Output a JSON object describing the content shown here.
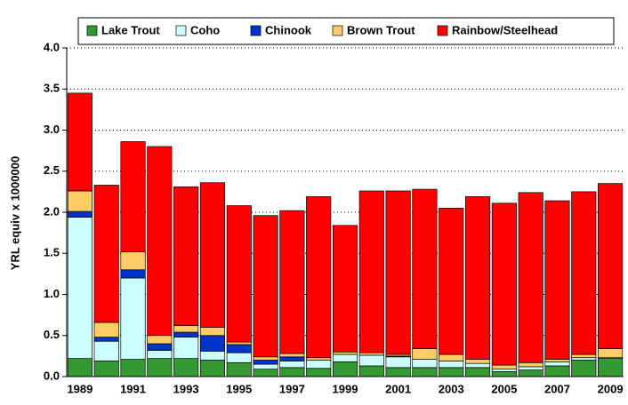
{
  "chart_data": {
    "type": "stacked-bar",
    "ylabel": "YRL equiv  x 1000000",
    "categories": [
      "1989",
      null,
      "1991",
      null,
      "1993",
      null,
      "1995",
      null,
      "1997",
      null,
      "1999",
      null,
      "2001",
      null,
      "2003",
      null,
      "2005",
      null,
      "2007",
      null,
      "2009"
    ],
    "series": [
      {
        "name": "Lake Trout",
        "color": "#339933",
        "values": [
          0.22,
          0.19,
          0.21,
          0.22,
          0.22,
          0.2,
          0.17,
          0.09,
          0.11,
          0.1,
          0.18,
          0.13,
          0.11,
          0.11,
          0.11,
          0.11,
          0.06,
          0.08,
          0.13,
          0.2,
          0.22
        ]
      },
      {
        "name": "Coho",
        "color": "#ccffff",
        "values": [
          1.72,
          0.24,
          0.99,
          0.1,
          0.26,
          0.11,
          0.12,
          0.06,
          0.08,
          0.1,
          0.09,
          0.13,
          0.13,
          0.1,
          0.08,
          0.05,
          0.03,
          0.04,
          0.05,
          0.03,
          0.01
        ]
      },
      {
        "name": "Chinook",
        "color": "#0033cc",
        "values": [
          0.07,
          0.05,
          0.1,
          0.08,
          0.06,
          0.19,
          0.1,
          0.05,
          0.05,
          0,
          0,
          0,
          0.01,
          0,
          0,
          0,
          0,
          0,
          0,
          0,
          0
        ]
      },
      {
        "name": "Brown Trout",
        "color": "#ffcc66",
        "values": [
          0.25,
          0.18,
          0.22,
          0.1,
          0.08,
          0.1,
          0.03,
          0.04,
          0.04,
          0.03,
          0.03,
          0.03,
          0.02,
          0.13,
          0.08,
          0.05,
          0.05,
          0.05,
          0.03,
          0.04,
          0.11
        ]
      },
      {
        "name": "Rainbow/Steelhead",
        "color": "#ff0000",
        "values": [
          1.19,
          1.67,
          1.34,
          2.3,
          1.69,
          1.76,
          1.66,
          1.72,
          1.74,
          1.96,
          1.54,
          1.97,
          1.99,
          1.94,
          1.78,
          1.98,
          1.97,
          2.07,
          1.93,
          1.98,
          2.01
        ]
      }
    ],
    "ylim": [
      0,
      4
    ],
    "yticks": [
      {
        "value": 0,
        "label": "0.0"
      },
      0.5,
      {
        "value": 1,
        "label": "1.0"
      },
      1.5,
      {
        "value": 2,
        "label": "2.0"
      },
      2.5,
      {
        "value": 3,
        "label": "3.0"
      },
      3.5,
      {
        "value": 4,
        "label": "4.0"
      }
    ],
    "grid": true
  }
}
